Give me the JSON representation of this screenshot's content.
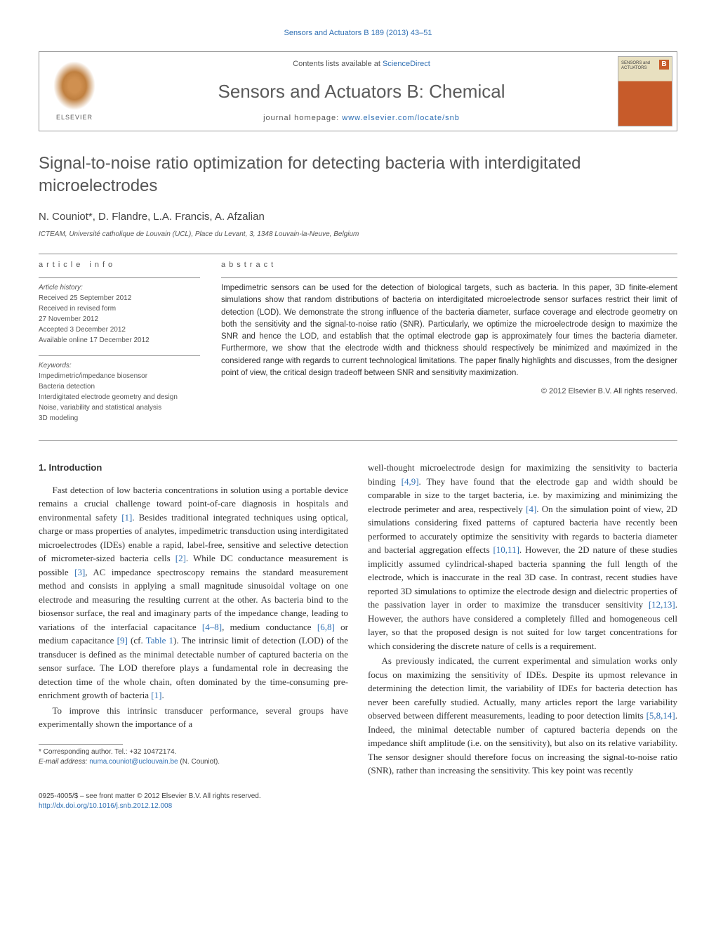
{
  "top_line": "Sensors and Actuators B 189 (2013) 43–51",
  "header": {
    "contents_prefix": "Contents lists available at ",
    "contents_link": "ScienceDirect",
    "journal_name": "Sensors and Actuators B: Chemical",
    "homepage_prefix": "journal homepage: ",
    "homepage_link": "www.elsevier.com/locate/snb",
    "elsevier_label": "ELSEVIER",
    "cover_text1": "SENSORS and",
    "cover_text2": "ACTUATORS",
    "cover_b": "B"
  },
  "title": "Signal-to-noise ratio optimization for detecting bacteria with interdigitated microelectrodes",
  "authors": "N. Couniot*, D. Flandre, L.A. Francis, A. Afzalian",
  "affiliation": "ICTEAM, Université catholique de Louvain (UCL), Place du Levant, 3, 1348 Louvain-la-Neuve, Belgium",
  "info_label": "article info",
  "abstract_label": "abstract",
  "history": {
    "head": "Article history:",
    "received": "Received 25 September 2012",
    "revised1": "Received in revised form",
    "revised2": "27 November 2012",
    "accepted": "Accepted 3 December 2012",
    "online": "Available online 17 December 2012"
  },
  "keywords": {
    "head": "Keywords:",
    "k1": "Impedimetric/impedance biosensor",
    "k2": "Bacteria detection",
    "k3": "Interdigitated electrode geometry and design",
    "k4": "Noise, variability and statistical analysis",
    "k5": "3D modeling"
  },
  "abstract": "Impedimetric sensors can be used for the detection of biological targets, such as bacteria. In this paper, 3D finite-element simulations show that random distributions of bacteria on interdigitated microelectrode sensor surfaces restrict their limit of detection (LOD). We demonstrate the strong influence of the bacteria diameter, surface coverage and electrode geometry on both the sensitivity and the signal-to-noise ratio (SNR). Particularly, we optimize the microelectrode design to maximize the SNR and hence the LOD, and establish that the optimal electrode gap is approximately four times the bacteria diameter. Furthermore, we show that the electrode width and thickness should respectively be minimized and maximized in the considered range with regards to current technological limitations. The paper finally highlights and discusses, from the designer point of view, the critical design tradeoff between SNR and sensitivity maximization.",
  "copyright": "© 2012 Elsevier B.V. All rights reserved.",
  "section1": "1.  Introduction",
  "para1a": "Fast detection of low bacteria concentrations in solution using a portable device remains a crucial challenge toward point-of-care diagnosis in hospitals and environmental safety ",
  "ref1": "[1]",
  "para1b": ". Besides traditional integrated techniques using optical, charge or mass properties of analytes, impedimetric transduction using interdigitated microelectrodes (IDEs) enable a rapid, label-free, sensitive and selective detection of micrometer-sized bacteria cells ",
  "ref2": "[2]",
  "para1c": ". While DC conductance measurement is possible ",
  "ref3": "[3]",
  "para1d": ", AC impedance spectroscopy remains the standard measurement method and consists in applying a small magnitude sinusoidal voltage on one electrode and measuring the resulting current at the other. As bacteria bind to the biosensor surface, the real and imaginary parts of the impedance change, leading to variations of the interfacial capacitance ",
  "ref4": "[4–8]",
  "para1e": ", medium conductance ",
  "ref5": "[6,8]",
  "para1f": " or medium capacitance ",
  "ref6": "[9]",
  "para1g": " (cf. ",
  "tab1": "Table 1",
  "para1h": "). The intrinsic limit of detection (LOD) of the transducer is defined as the minimal detectable number of captured bacteria on the sensor surface. The LOD therefore plays a fundamental role in decreasing the detection time of the whole chain, often dominated by the time-consuming pre-enrichment growth of bacteria ",
  "ref7": "[1]",
  "para1i": ".",
  "para2a": "To improve this intrinsic transducer performance, several groups have experimentally shown the importance of a",
  "para3a": "well-thought microelectrode design for maximizing the sensitivity to bacteria binding ",
  "ref8": "[4,9]",
  "para3b": ". They have found that the electrode gap and width should be comparable in size to the target bacteria, i.e. by maximizing and minimizing the electrode perimeter and area, respectively ",
  "ref9": "[4]",
  "para3c": ". On the simulation point of view, 2D simulations considering fixed patterns of captured bacteria have recently been performed to accurately optimize the sensitivity with regards to bacteria diameter and bacterial aggregation effects ",
  "ref10": "[10,11]",
  "para3d": ". However, the 2D nature of these studies implicitly assumed cylindrical-shaped bacteria spanning the full length of the electrode, which is inaccurate in the real 3D case. In contrast, recent studies have reported 3D simulations to optimize the electrode design and dielectric properties of the passivation layer in order to maximize the transducer sensitivity ",
  "ref11": "[12,13]",
  "para3e": ". However, the authors have considered a completely filled and homogeneous cell layer, so that the proposed design is not suited for low target concentrations for which considering the discrete nature of cells is a requirement.",
  "para4a": "As previously indicated, the current experimental and simulation works only focus on maximizing the sensitivity of IDEs. Despite its upmost relevance in determining the detection limit, the variability of IDEs for bacteria detection has never been carefully studied. Actually, many articles report the large variability observed between different measurements, leading to poor detection limits ",
  "ref12": "[5,8,14]",
  "para4b": ". Indeed, the minimal detectable number of captured bacteria depends on the impedance shift amplitude (i.e. on the sensitivity), but also on its relative variability. The sensor designer should therefore focus on increasing the signal-to-noise ratio (SNR), rather than increasing the sensitivity. This key point was recently",
  "footnote": {
    "corr": "* Corresponding author. Tel.: +32 10472174.",
    "email_label": "E-mail address: ",
    "email": "numa.couniot@uclouvain.be",
    "email_who": " (N. Couniot)."
  },
  "footer": {
    "line1": "0925-4005/$ – see front matter © 2012 Elsevier B.V. All rights reserved.",
    "doi": "http://dx.doi.org/10.1016/j.snb.2012.12.008"
  }
}
